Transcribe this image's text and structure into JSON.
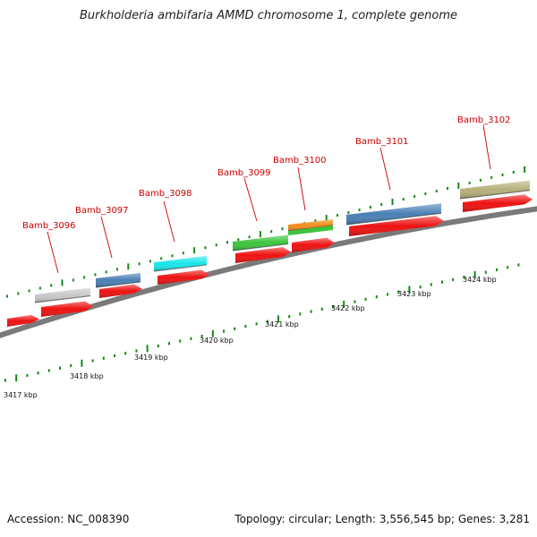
{
  "title": "Burkholderia ambifaria AMMD chromosome 1, complete genome",
  "footer": {
    "accession": "Accession: NC_008390",
    "summary": "Topology: circular; Length: 3,556,545 bp; Genes: 3,281"
  },
  "scale_labels": [
    "3417 kbp",
    "3418 kbp",
    "3419 kbp",
    "3420 kbp",
    "3421 kbp",
    "3422 kbp",
    "3423 kbp",
    "3424 kbp"
  ],
  "genes": [
    {
      "name": "Bamb_3096",
      "color": "#c8c8c8"
    },
    {
      "name": "Bamb_3097",
      "color": "#4a7fb5"
    },
    {
      "name": "Bamb_3098",
      "color": "#19e6ea"
    },
    {
      "name": "Bamb_3099",
      "color": "#3cc43c"
    },
    {
      "name": "Bamb_3100",
      "color": "#f28c1a"
    },
    {
      "name": "Bamb_3101",
      "color": "#4a7fb5"
    },
    {
      "name": "Bamb_3102",
      "color": "#b5b07a"
    }
  ],
  "colors": {
    "cds": "#ee1111",
    "label": "#cc0000",
    "tick": "#138a13",
    "track": "#7a7a7a",
    "extra_feature": "#3cc43c"
  }
}
